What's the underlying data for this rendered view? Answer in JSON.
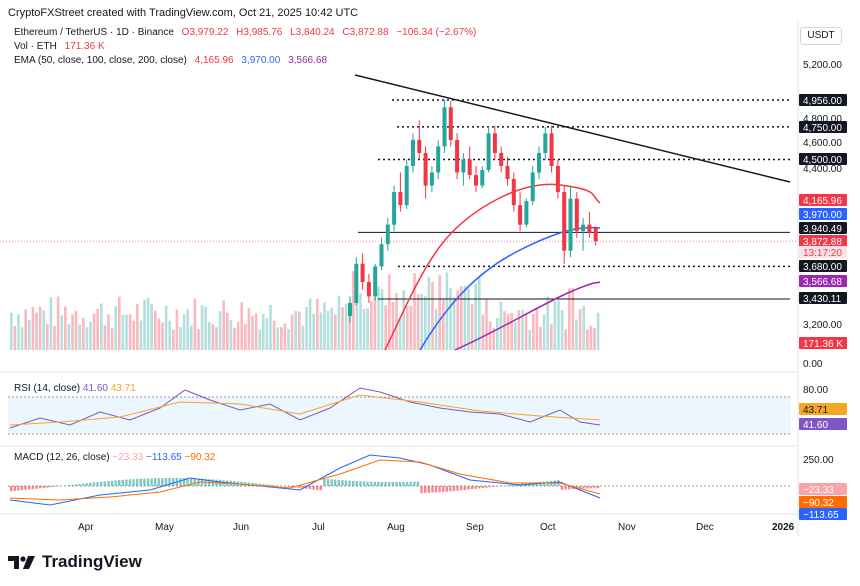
{
  "header": {
    "credit": "CryptoFXStreet created with TradingView.com, Oct 21, 2025 10:42 UTC",
    "symbol": "Ethereum / TetherUS · 1D · Binance",
    "open": "O3,979.22",
    "high": "H3,985.76",
    "low": "L3,840.24",
    "close": "C3,872.88",
    "change": "−106.34 (−2.67%)",
    "vol_label": "Vol · ETH",
    "vol_value": "171.36 K",
    "ema_label": "EMA (50, close, 100, close, 200, close)",
    "ema50": "4,165.96",
    "ema100": "3,970.00",
    "ema200": "3,566.68",
    "currency": "USDT"
  },
  "rsi": {
    "label": "RSI (14, close)",
    "value": "41.60",
    "signal": "43.71"
  },
  "macd": {
    "label": "MACD (12, 26, close)",
    "hist": "−23.33",
    "macd": "−113.65",
    "signal": "−90.32"
  },
  "brand": {
    "name": "TradingView"
  },
  "colors": {
    "up": "#26a69a",
    "down": "#f23645",
    "ema50": "#f23645",
    "ema100": "#2962ff",
    "ema200": "#9c27b0",
    "rsi": "#7e57c2",
    "rsi_ma": "#f5a623",
    "macd": "#2962ff",
    "macd_signal": "#ff6d00"
  },
  "chart_data": {
    "type": "candlestick",
    "price_axis_ticks": [
      "5,200.00",
      "4,800.00",
      "4,600.00",
      "4,400.00",
      "3,200.00",
      "0.00"
    ],
    "time_axis_ticks": [
      "Apr",
      "May",
      "Jun",
      "Jul",
      "Aug",
      "Sep",
      "Oct",
      "Nov",
      "Dec",
      "2026"
    ],
    "levels": [
      {
        "label": "4,956.00",
        "style": "dotted"
      },
      {
        "label": "4,750.00",
        "style": "dotted"
      },
      {
        "label": "4,500.00",
        "style": "dotted"
      },
      {
        "label": "3,940.49",
        "style": "solid"
      },
      {
        "label": "3,680.00",
        "style": "dotted"
      },
      {
        "label": "3,430.11",
        "style": "solid"
      }
    ],
    "right_tags": [
      {
        "label": "4,165.96",
        "color": "#f23645"
      },
      {
        "label": "3,970.00",
        "color": "#2962ff"
      },
      {
        "label": "3,872.88",
        "color": "#f23645"
      },
      {
        "label": "13:17:20",
        "color": "#f23645"
      },
      {
        "label": "3,566.68",
        "color": "#9c27b0"
      },
      {
        "label": "171.36 K",
        "color": "#f23645"
      }
    ],
    "rsi_axis_ticks": [
      "80.00"
    ],
    "rsi_tags": [
      {
        "label": "43.71",
        "color": "#f5a623"
      },
      {
        "label": "41.60",
        "color": "#7e57c2"
      }
    ],
    "macd_axis_ticks": [
      "250.00"
    ],
    "macd_tags": [
      {
        "label": "−23.33",
        "color": "#f8a5a9"
      },
      {
        "label": "−90.32",
        "color": "#ff6d00"
      },
      {
        "label": "−113.65",
        "color": "#2962ff"
      }
    ],
    "candles": [
      [
        3300,
        3450,
        3250,
        3400
      ],
      [
        3400,
        3750,
        3380,
        3700
      ],
      [
        3700,
        3780,
        3500,
        3560
      ],
      [
        3560,
        3620,
        3400,
        3450
      ],
      [
        3450,
        3700,
        3420,
        3680
      ],
      [
        3680,
        3900,
        3650,
        3850
      ],
      [
        3850,
        4050,
        3800,
        4000
      ],
      [
        4000,
        4300,
        3950,
        4250
      ],
      [
        4250,
        4400,
        4100,
        4150
      ],
      [
        4150,
        4500,
        4120,
        4450
      ],
      [
        4450,
        4700,
        4400,
        4650
      ],
      [
        4650,
        4800,
        4500,
        4550
      ],
      [
        4550,
        4600,
        4200,
        4300
      ],
      [
        4300,
        4450,
        4250,
        4400
      ],
      [
        4400,
        4650,
        4350,
        4600
      ],
      [
        4600,
        4956,
        4550,
        4900
      ],
      [
        4900,
        4950,
        4600,
        4650
      ],
      [
        4650,
        4700,
        4350,
        4400
      ],
      [
        4400,
        4550,
        4300,
        4500
      ],
      [
        4500,
        4600,
        4350,
        4380
      ],
      [
        4380,
        4450,
        4250,
        4300
      ],
      [
        4300,
        4450,
        4280,
        4420
      ],
      [
        4420,
        4750,
        4400,
        4700
      ],
      [
        4700,
        4760,
        4500,
        4550
      ],
      [
        4550,
        4600,
        4400,
        4450
      ],
      [
        4450,
        4520,
        4300,
        4350
      ],
      [
        4350,
        4400,
        4100,
        4150
      ],
      [
        4150,
        4250,
        3950,
        4000
      ],
      [
        4000,
        4200,
        3980,
        4180
      ],
      [
        4180,
        4450,
        4150,
        4400
      ],
      [
        4400,
        4600,
        4350,
        4550
      ],
      [
        4550,
        4750,
        4500,
        4700
      ],
      [
        4700,
        4760,
        4400,
        4450
      ],
      [
        4450,
        4500,
        4200,
        4250
      ],
      [
        4250,
        4300,
        3700,
        3800
      ],
      [
        3800,
        4300,
        3750,
        4200
      ],
      [
        4200,
        4250,
        3900,
        3950
      ],
      [
        3950,
        4050,
        3800,
        4000
      ],
      [
        4000,
        4100,
        3900,
        3940
      ],
      [
        3979,
        3986,
        3840,
        3873
      ]
    ]
  }
}
